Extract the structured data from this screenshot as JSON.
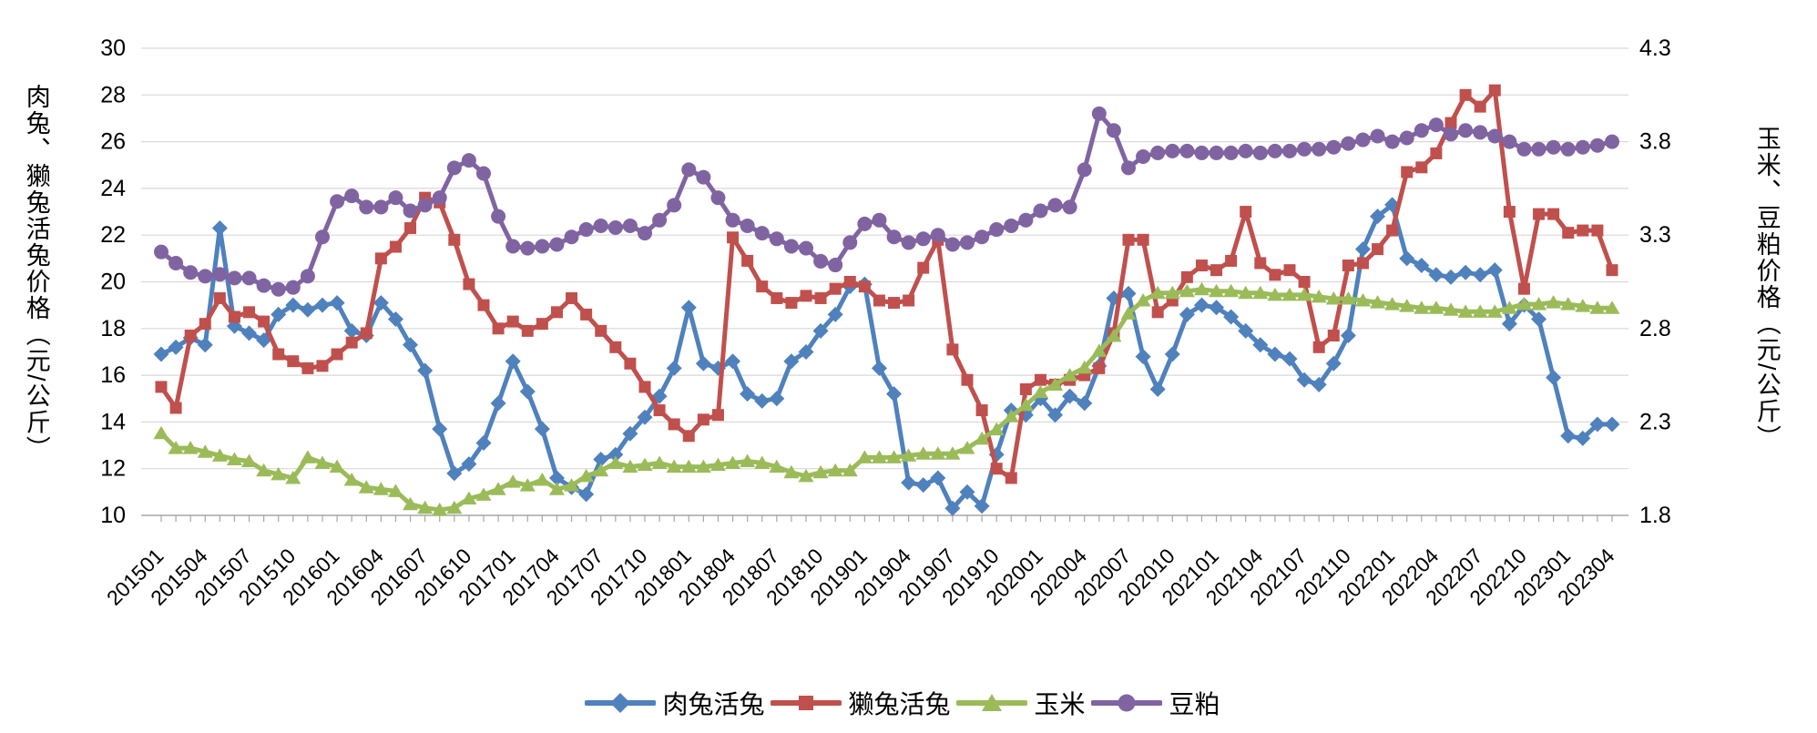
{
  "chart_data": {
    "type": "line",
    "title": "",
    "grid": "horizontal",
    "legend_position": "bottom",
    "x": {
      "tick_every": 3,
      "categories": [
        "201501",
        "201502",
        "201503",
        "201504",
        "201505",
        "201506",
        "201507",
        "201508",
        "201509",
        "201510",
        "201511",
        "201512",
        "201601",
        "201602",
        "201603",
        "201604",
        "201605",
        "201606",
        "201607",
        "201608",
        "201609",
        "201610",
        "201611",
        "201612",
        "201701",
        "201702",
        "201703",
        "201704",
        "201705",
        "201706",
        "201707",
        "201708",
        "201709",
        "201710",
        "201711",
        "201712",
        "201801",
        "201802",
        "201803",
        "201804",
        "201805",
        "201806",
        "201807",
        "201808",
        "201809",
        "201810",
        "201811",
        "201812",
        "201901",
        "201902",
        "201903",
        "201904",
        "201905",
        "201906",
        "201907",
        "201908",
        "201909",
        "201910",
        "201911",
        "201912",
        "202001",
        "202002",
        "202003",
        "202004",
        "202005",
        "202006",
        "202007",
        "202008",
        "202009",
        "202010",
        "202011",
        "202012",
        "202101",
        "202102",
        "202103",
        "202104",
        "202105",
        "202106",
        "202107",
        "202108",
        "202109",
        "202110",
        "202111",
        "202112",
        "202201",
        "202202",
        "202203",
        "202204",
        "202205",
        "202206",
        "202207",
        "202208",
        "202209",
        "202210",
        "202211",
        "202212",
        "202301",
        "202302",
        "202303",
        "202304"
      ]
    },
    "y_left": {
      "title": "肉兔、獭兔活兔价格（元/公斤）",
      "min": 10,
      "max": 30,
      "step": 2,
      "ticks": [
        30,
        28,
        26,
        24,
        22,
        20,
        18,
        16,
        14,
        12,
        10
      ]
    },
    "y_right": {
      "title": "玉米、豆粕价格（元/公斤）",
      "min": 1.8,
      "max": 4.3,
      "step": 0.5,
      "ticks": [
        4.3,
        3.8,
        3.3,
        2.8,
        2.3,
        1.8
      ]
    },
    "series": [
      {
        "name": "肉兔活兔",
        "axis": "left",
        "color": "#4F81BD",
        "marker": "diamond",
        "values": [
          16.9,
          17.2,
          17.6,
          17.3,
          22.3,
          18.1,
          17.8,
          17.5,
          18.6,
          19.0,
          18.8,
          19.0,
          19.1,
          17.9,
          17.7,
          19.1,
          18.4,
          17.3,
          16.2,
          13.7,
          11.8,
          12.2,
          13.1,
          14.8,
          16.6,
          15.3,
          13.7,
          11.6,
          11.2,
          10.9,
          12.4,
          12.6,
          13.5,
          14.2,
          15.1,
          16.3,
          18.9,
          16.5,
          16.3,
          16.6,
          15.2,
          14.9,
          15.0,
          16.6,
          17.0,
          17.9,
          18.6,
          19.8,
          19.9,
          16.3,
          15.2,
          11.4,
          11.3,
          11.6,
          10.3,
          11.0,
          10.4,
          12.6,
          14.5,
          14.3,
          15.0,
          14.3,
          15.1,
          14.8,
          16.4,
          19.3,
          19.5,
          16.8,
          15.4,
          16.9,
          18.6,
          19.0,
          18.9,
          18.5,
          17.9,
          17.3,
          16.9,
          16.7,
          15.8,
          15.6,
          16.5,
          17.7,
          21.4,
          22.8,
          23.3,
          21.0,
          20.7,
          20.3,
          20.2,
          20.4,
          20.3,
          20.5,
          18.2,
          19.0,
          18.4,
          15.9,
          13.4,
          13.3,
          13.9,
          13.9
        ]
      },
      {
        "name": "獭兔活兔",
        "axis": "left",
        "color": "#C0504D",
        "marker": "square",
        "values": [
          15.5,
          14.6,
          17.7,
          18.2,
          19.3,
          18.5,
          18.7,
          18.3,
          16.9,
          16.6,
          16.3,
          16.4,
          16.9,
          17.4,
          17.8,
          21.0,
          21.5,
          22.3,
          23.6,
          23.4,
          21.8,
          19.9,
          19.0,
          18.0,
          18.3,
          17.9,
          18.2,
          18.7,
          19.3,
          18.6,
          17.9,
          17.2,
          16.5,
          15.5,
          14.5,
          13.9,
          13.4,
          14.1,
          14.3,
          21.9,
          20.9,
          19.8,
          19.3,
          19.1,
          19.4,
          19.3,
          19.7,
          20.0,
          19.8,
          19.2,
          19.1,
          19.2,
          20.6,
          21.8,
          17.1,
          15.8,
          14.5,
          12.0,
          11.6,
          15.4,
          15.8,
          15.6,
          15.8,
          16.0,
          16.3,
          17.8,
          21.8,
          21.8,
          18.7,
          19.2,
          20.2,
          20.7,
          20.5,
          20.9,
          23.0,
          20.8,
          20.3,
          20.5,
          20.0,
          17.2,
          17.7,
          20.7,
          20.8,
          21.4,
          22.2,
          24.7,
          24.9,
          25.5,
          26.8,
          28.0,
          27.5,
          28.2,
          23.0,
          19.7,
          22.9,
          22.9,
          22.1,
          22.2,
          22.2,
          20.5
        ]
      },
      {
        "name": "玉米",
        "axis": "right",
        "color": "#9BBB59",
        "marker": "triangle",
        "values": [
          2.24,
          2.16,
          2.16,
          2.14,
          2.12,
          2.1,
          2.09,
          2.04,
          2.02,
          2.0,
          2.11,
          2.08,
          2.06,
          1.99,
          1.95,
          1.94,
          1.93,
          1.86,
          1.84,
          1.83,
          1.84,
          1.89,
          1.91,
          1.94,
          1.98,
          1.96,
          1.99,
          1.94,
          1.96,
          2.01,
          2.04,
          2.08,
          2.06,
          2.07,
          2.08,
          2.06,
          2.06,
          2.06,
          2.07,
          2.08,
          2.09,
          2.08,
          2.06,
          2.03,
          2.01,
          2.03,
          2.04,
          2.04,
          2.11,
          2.11,
          2.11,
          2.12,
          2.13,
          2.13,
          2.13,
          2.16,
          2.21,
          2.26,
          2.33,
          2.39,
          2.46,
          2.5,
          2.55,
          2.59,
          2.68,
          2.76,
          2.88,
          2.95,
          2.99,
          2.99,
          3.0,
          3.01,
          3.0,
          3.0,
          2.99,
          2.99,
          2.98,
          2.98,
          2.98,
          2.97,
          2.96,
          2.96,
          2.95,
          2.94,
          2.93,
          2.92,
          2.91,
          2.91,
          2.9,
          2.89,
          2.89,
          2.89,
          2.91,
          2.93,
          2.93,
          2.94,
          2.93,
          2.92,
          2.91,
          2.91
        ]
      },
      {
        "name": "豆粕",
        "axis": "right",
        "color": "#8064A2",
        "marker": "circle",
        "values": [
          3.21,
          3.15,
          3.1,
          3.08,
          3.09,
          3.07,
          3.07,
          3.03,
          3.01,
          3.02,
          3.08,
          3.29,
          3.48,
          3.51,
          3.45,
          3.45,
          3.5,
          3.43,
          3.46,
          3.5,
          3.66,
          3.7,
          3.63,
          3.4,
          3.24,
          3.23,
          3.24,
          3.25,
          3.29,
          3.33,
          3.35,
          3.34,
          3.35,
          3.31,
          3.38,
          3.46,
          3.65,
          3.61,
          3.5,
          3.38,
          3.35,
          3.31,
          3.28,
          3.24,
          3.23,
          3.16,
          3.14,
          3.26,
          3.36,
          3.38,
          3.29,
          3.26,
          3.28,
          3.3,
          3.25,
          3.26,
          3.29,
          3.33,
          3.35,
          3.38,
          3.43,
          3.46,
          3.45,
          3.65,
          3.95,
          3.86,
          3.66,
          3.72,
          3.74,
          3.75,
          3.75,
          3.74,
          3.74,
          3.74,
          3.75,
          3.74,
          3.75,
          3.75,
          3.76,
          3.76,
          3.77,
          3.79,
          3.81,
          3.83,
          3.8,
          3.82,
          3.86,
          3.89,
          3.84,
          3.86,
          3.85,
          3.83,
          3.8,
          3.76,
          3.76,
          3.77,
          3.76,
          3.77,
          3.78,
          3.8
        ]
      }
    ],
    "style": {
      "gridline_color": "#D9D9D9",
      "axis_line_color": "#A6A6A6",
      "text_color": "#000000"
    }
  }
}
